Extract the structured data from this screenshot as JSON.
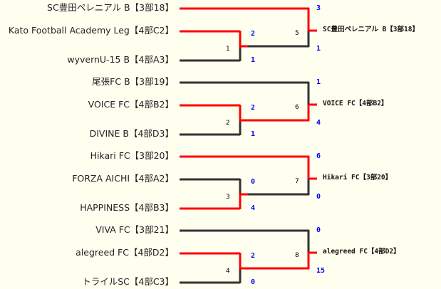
{
  "colors": {
    "win": "#ff0000",
    "lose": "#333333",
    "score": "#0000ff",
    "background": "#fffff0"
  },
  "groups": [
    {
      "seed_team": "SC豊田ペレニアル B【3部18】",
      "r1_top": "Kato Football Academy Leg【4部C2】",
      "r1_bottom": "wyvernU-15 B【4部A3】",
      "r1_match": "1",
      "r1_scores": [
        "2",
        "1"
      ],
      "r1_winner": "top",
      "final_match": "5",
      "final_scores": [
        "3",
        "1"
      ],
      "final_winner": "top",
      "winner_label": "SC豊田ペレニアル B【3部18】"
    },
    {
      "seed_team": "尾張FC B【3部19】",
      "r1_top": "VOICE FC【4部B2】",
      "r1_bottom": "DIVINE B【4部D3】",
      "r1_match": "2",
      "r1_scores": [
        "2",
        "1"
      ],
      "r1_winner": "top",
      "final_match": "6",
      "final_scores": [
        "1",
        "4"
      ],
      "final_winner": "bottom",
      "winner_label": "VOICE FC【4部B2】"
    },
    {
      "seed_team": "Hikari FC【3部20】",
      "r1_top": "FORZA AICHI【4部A2】",
      "r1_bottom": "HAPPINESS【4部B3】",
      "r1_match": "3",
      "r1_scores": [
        "0",
        "4"
      ],
      "r1_winner": "bottom",
      "final_match": "7",
      "final_scores": [
        "6",
        "0"
      ],
      "final_winner": "top",
      "winner_label": "Hikari FC【3部20】"
    },
    {
      "seed_team": "VIVA FC【3部21】",
      "r1_top": "alegreed FC【4部D2】",
      "r1_bottom": "トライルSC【4部C3】",
      "r1_match": "4",
      "r1_scores": [
        "2",
        "0"
      ],
      "r1_winner": "top",
      "final_match": "8",
      "final_scores": [
        "0",
        "15"
      ],
      "final_winner": "bottom",
      "winner_label": "alegreed FC【4部D2】"
    }
  ]
}
